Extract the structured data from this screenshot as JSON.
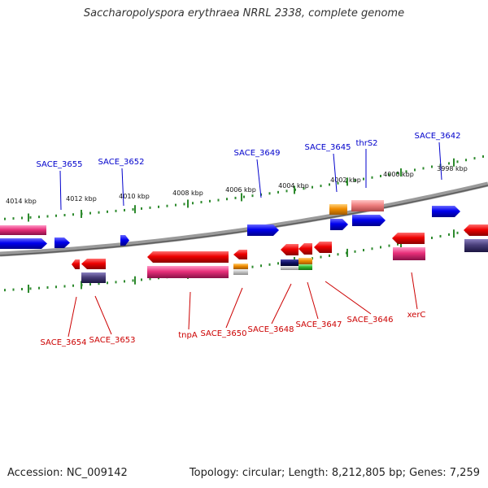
{
  "title": "Saccharopolyspora erythraea NRRL 2338, complete genome",
  "footer": {
    "accession": "Accession: NC_009142",
    "summary": "Topology: circular; Length: 8,212,805 bp; Genes: 7,259"
  },
  "colors": {
    "backbone": "#808080",
    "forward_cds": "#0000ee",
    "reverse_cds": "#ee0000",
    "forward_label": "#0000cc",
    "reverse_label": "#cc0000",
    "tick": "#2d8a2d",
    "pink_feature": "#e8307a",
    "orange_feature": "#f08c00",
    "salmon_feature": "#ef7f7f",
    "slate_feature": "#4a3f7a",
    "green_feature": "#33bb33"
  },
  "scale_labels": [
    "4014 kbp",
    "4012 kbp",
    "4010 kbp",
    "4008 kbp",
    "4006 kbp",
    "4004 kbp",
    "4002 kbp",
    "4000 kbp",
    "3998 kbp"
  ],
  "top_gene_labels": [
    "SACE_3655",
    "SACE_3652",
    "SACE_3649",
    "SACE_3645",
    "thrS2",
    "SACE_3642"
  ],
  "bottom_gene_labels": [
    "SACE_3654",
    "SACE_3653",
    "tnpA",
    "SACE_3650",
    "SACE_3648",
    "SACE_3647",
    "SACE_3646",
    "xerC"
  ]
}
